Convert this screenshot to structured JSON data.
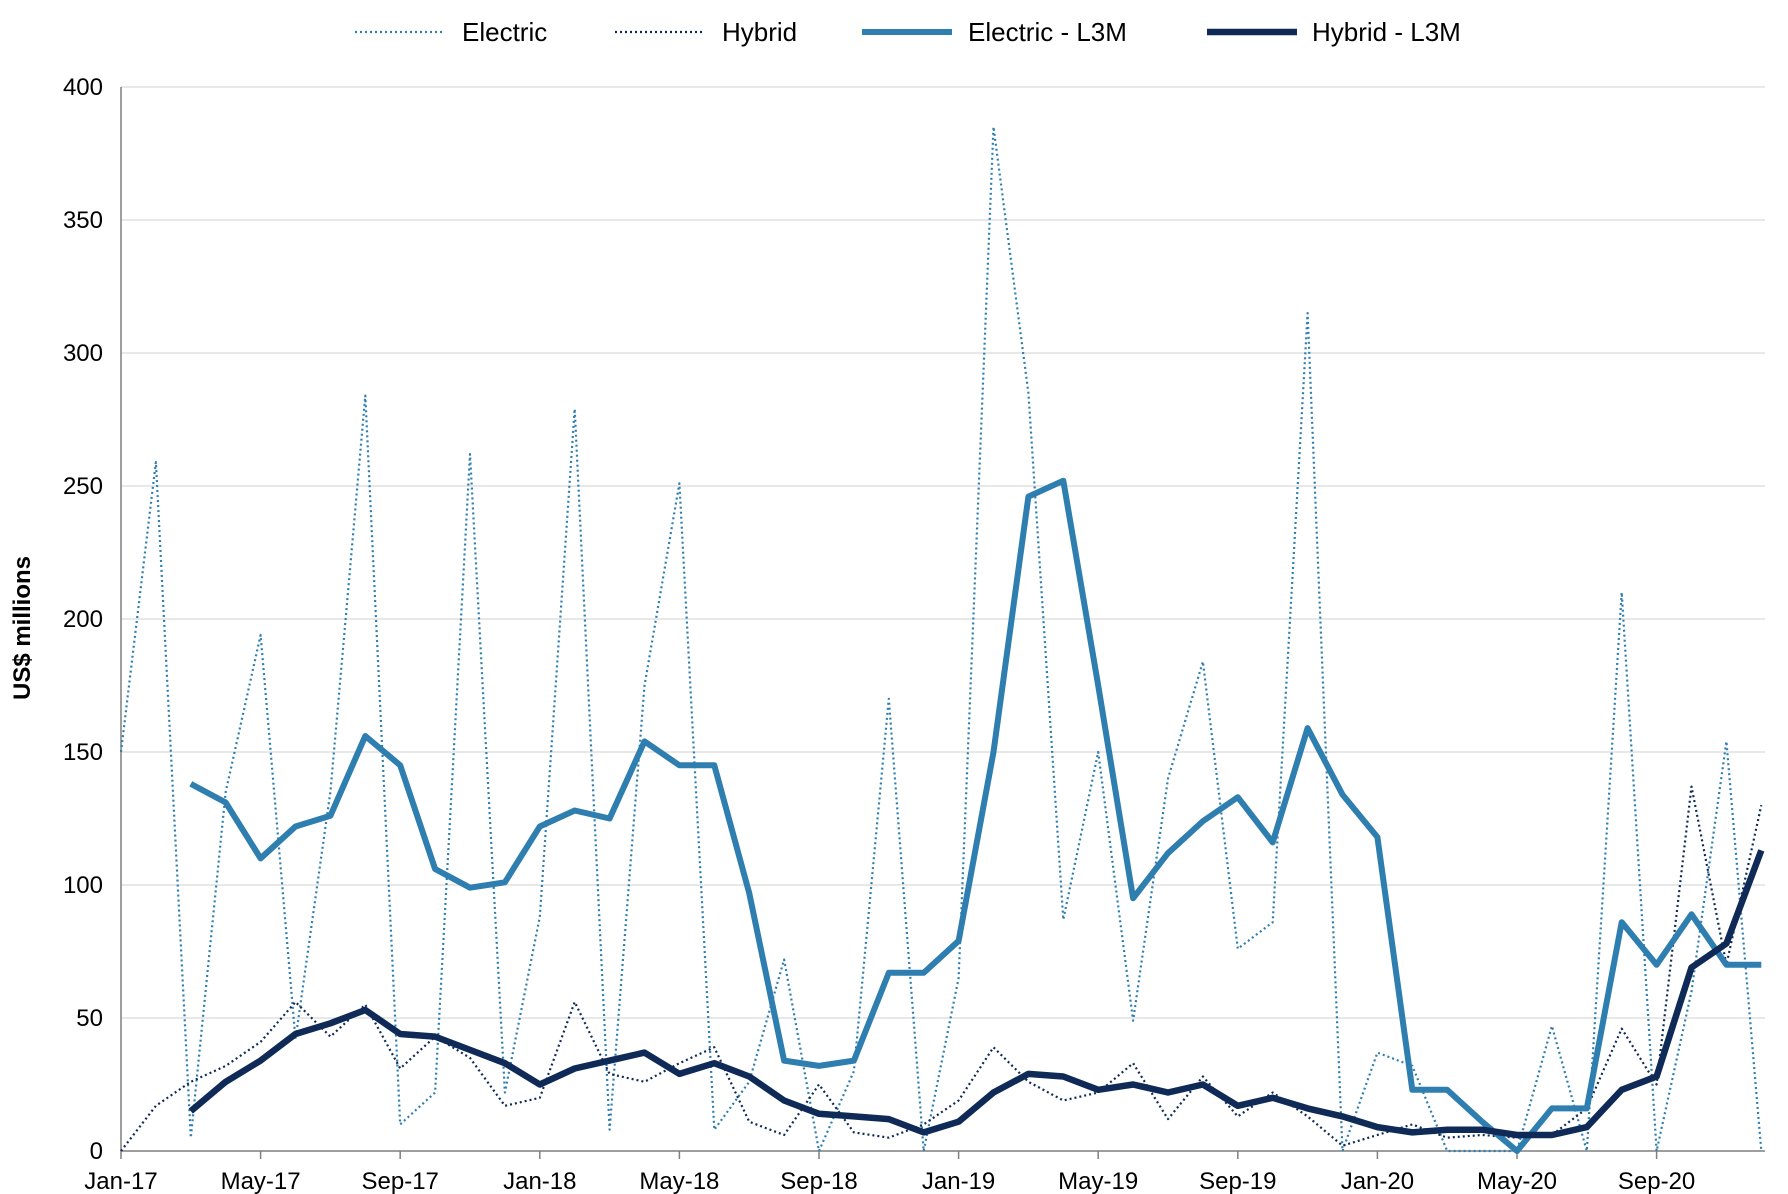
{
  "chart_data": {
    "type": "line",
    "title": "",
    "xlabel": "",
    "ylabel": "US$ millions",
    "ylim": [
      0,
      400
    ],
    "yticks": [
      0,
      50,
      100,
      150,
      200,
      250,
      300,
      350,
      400
    ],
    "x_tick_labels": [
      "Jan-17",
      "May-17",
      "Sep-17",
      "Jan-18",
      "May-18",
      "Sep-18",
      "Jan-19",
      "May-19",
      "Sep-19",
      "Jan-20",
      "May-20",
      "Sep-20"
    ],
    "x": [
      "Jan-17",
      "Feb-17",
      "Mar-17",
      "Apr-17",
      "May-17",
      "Jun-17",
      "Jul-17",
      "Aug-17",
      "Sep-17",
      "Oct-17",
      "Nov-17",
      "Dec-17",
      "Jan-18",
      "Feb-18",
      "Mar-18",
      "Apr-18",
      "May-18",
      "Jun-18",
      "Jul-18",
      "Aug-18",
      "Sep-18",
      "Oct-18",
      "Nov-18",
      "Dec-18",
      "Jan-19",
      "Feb-19",
      "Mar-19",
      "Apr-19",
      "May-19",
      "Jun-19",
      "Jul-19",
      "Aug-19",
      "Sep-19",
      "Oct-19",
      "Nov-19",
      "Dec-19",
      "Jan-20",
      "Feb-20",
      "Mar-20",
      "Apr-20",
      "May-20",
      "Jun-20",
      "Jul-20",
      "Aug-20",
      "Sep-20",
      "Oct-20",
      "Nov-20",
      "Dec-20"
    ],
    "grid": true,
    "legend_position": "top",
    "colors": {
      "electric": "#2e7eb0",
      "hybrid": "#0f2a56",
      "grid": "#d9d9d9",
      "axis": "#7f7f7f"
    },
    "series": [
      {
        "name": "Electric",
        "style": "dotted-thin",
        "values": [
          150,
          259,
          5,
          135,
          194,
          42,
          135,
          284,
          10,
          22,
          262,
          22,
          88,
          279,
          8,
          175,
          251,
          8,
          26,
          72,
          0,
          30,
          170,
          0,
          65,
          385,
          285,
          87,
          150,
          49,
          140,
          184,
          76,
          86,
          315,
          0,
          37,
          32,
          0,
          0,
          0,
          47,
          0,
          210,
          0,
          60,
          154,
          0
        ]
      },
      {
        "name": "Hybrid",
        "style": "dotted-thin",
        "values": [
          0,
          17,
          26,
          32,
          41,
          56,
          43,
          55,
          31,
          43,
          35,
          17,
          20,
          56,
          29,
          26,
          33,
          39,
          11,
          6,
          25,
          7,
          5,
          10,
          19,
          39,
          26,
          19,
          22,
          33,
          12,
          28,
          13,
          22,
          13,
          2,
          6,
          10,
          5,
          6,
          5,
          6,
          16,
          46,
          25,
          137,
          70,
          130
        ]
      },
      {
        "name": "Electric - L3M",
        "style": "solid-thick",
        "values": [
          null,
          null,
          138,
          131,
          110,
          122,
          126,
          156,
          145,
          106,
          99,
          101,
          122,
          128,
          125,
          154,
          145,
          145,
          97,
          34,
          32,
          34,
          67,
          67,
          79,
          150,
          246,
          252,
          175,
          95,
          112,
          124,
          133,
          116,
          159,
          134,
          118,
          23,
          23,
          11,
          0,
          16,
          16,
          86,
          70,
          89,
          70,
          70
        ]
      },
      {
        "name": "Hybrid - L3M",
        "style": "solid-thick",
        "values": [
          null,
          null,
          15,
          26,
          34,
          44,
          48,
          53,
          44,
          43,
          38,
          33,
          25,
          31,
          34,
          37,
          29,
          33,
          28,
          19,
          14,
          13,
          12,
          7,
          11,
          22,
          29,
          28,
          23,
          25,
          22,
          25,
          17,
          20,
          16,
          13,
          9,
          7,
          8,
          8,
          6,
          6,
          9,
          23,
          28,
          69,
          78,
          113
        ]
      }
    ]
  }
}
